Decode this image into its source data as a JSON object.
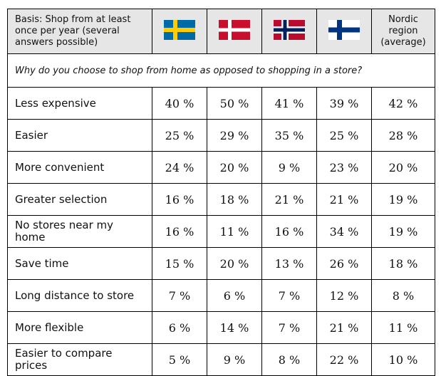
{
  "table": {
    "basis": "Basis: Shop from at least once per year (several answers possible)",
    "average_header": "Nordic region (average)",
    "question": "Why do you choose to shop from home as opposed to shopping in a store?",
    "rows": [
      [
        "Less expensive",
        "40 %",
        "50 %",
        "41 %",
        "39 %",
        "42 %"
      ],
      [
        "Easier",
        "25 %",
        "29 %",
        "35 %",
        "25 %",
        "28 %"
      ],
      [
        "More convenient",
        "24 %",
        "20 %",
        "9 %",
        "23 %",
        "20 %"
      ],
      [
        "Greater selection",
        "16 %",
        "18 %",
        "21 %",
        "21 %",
        "19 %"
      ],
      [
        "No stores near my home",
        "16 %",
        "11 %",
        "16 %",
        "34 %",
        "19 %"
      ],
      [
        "Save time",
        "15 %",
        "20 %",
        "13 %",
        "26 %",
        "18 %"
      ],
      [
        "Long distance to store",
        "7 %",
        "6 %",
        "7 %",
        "12 %",
        "8 %"
      ],
      [
        "More flexible",
        "6 %",
        "14 %",
        "7 %",
        "21 %",
        "11 %"
      ],
      [
        "Easier to compare prices",
        "5 %",
        "9 %",
        "8 %",
        "22 %",
        "10 %"
      ]
    ]
  }
}
